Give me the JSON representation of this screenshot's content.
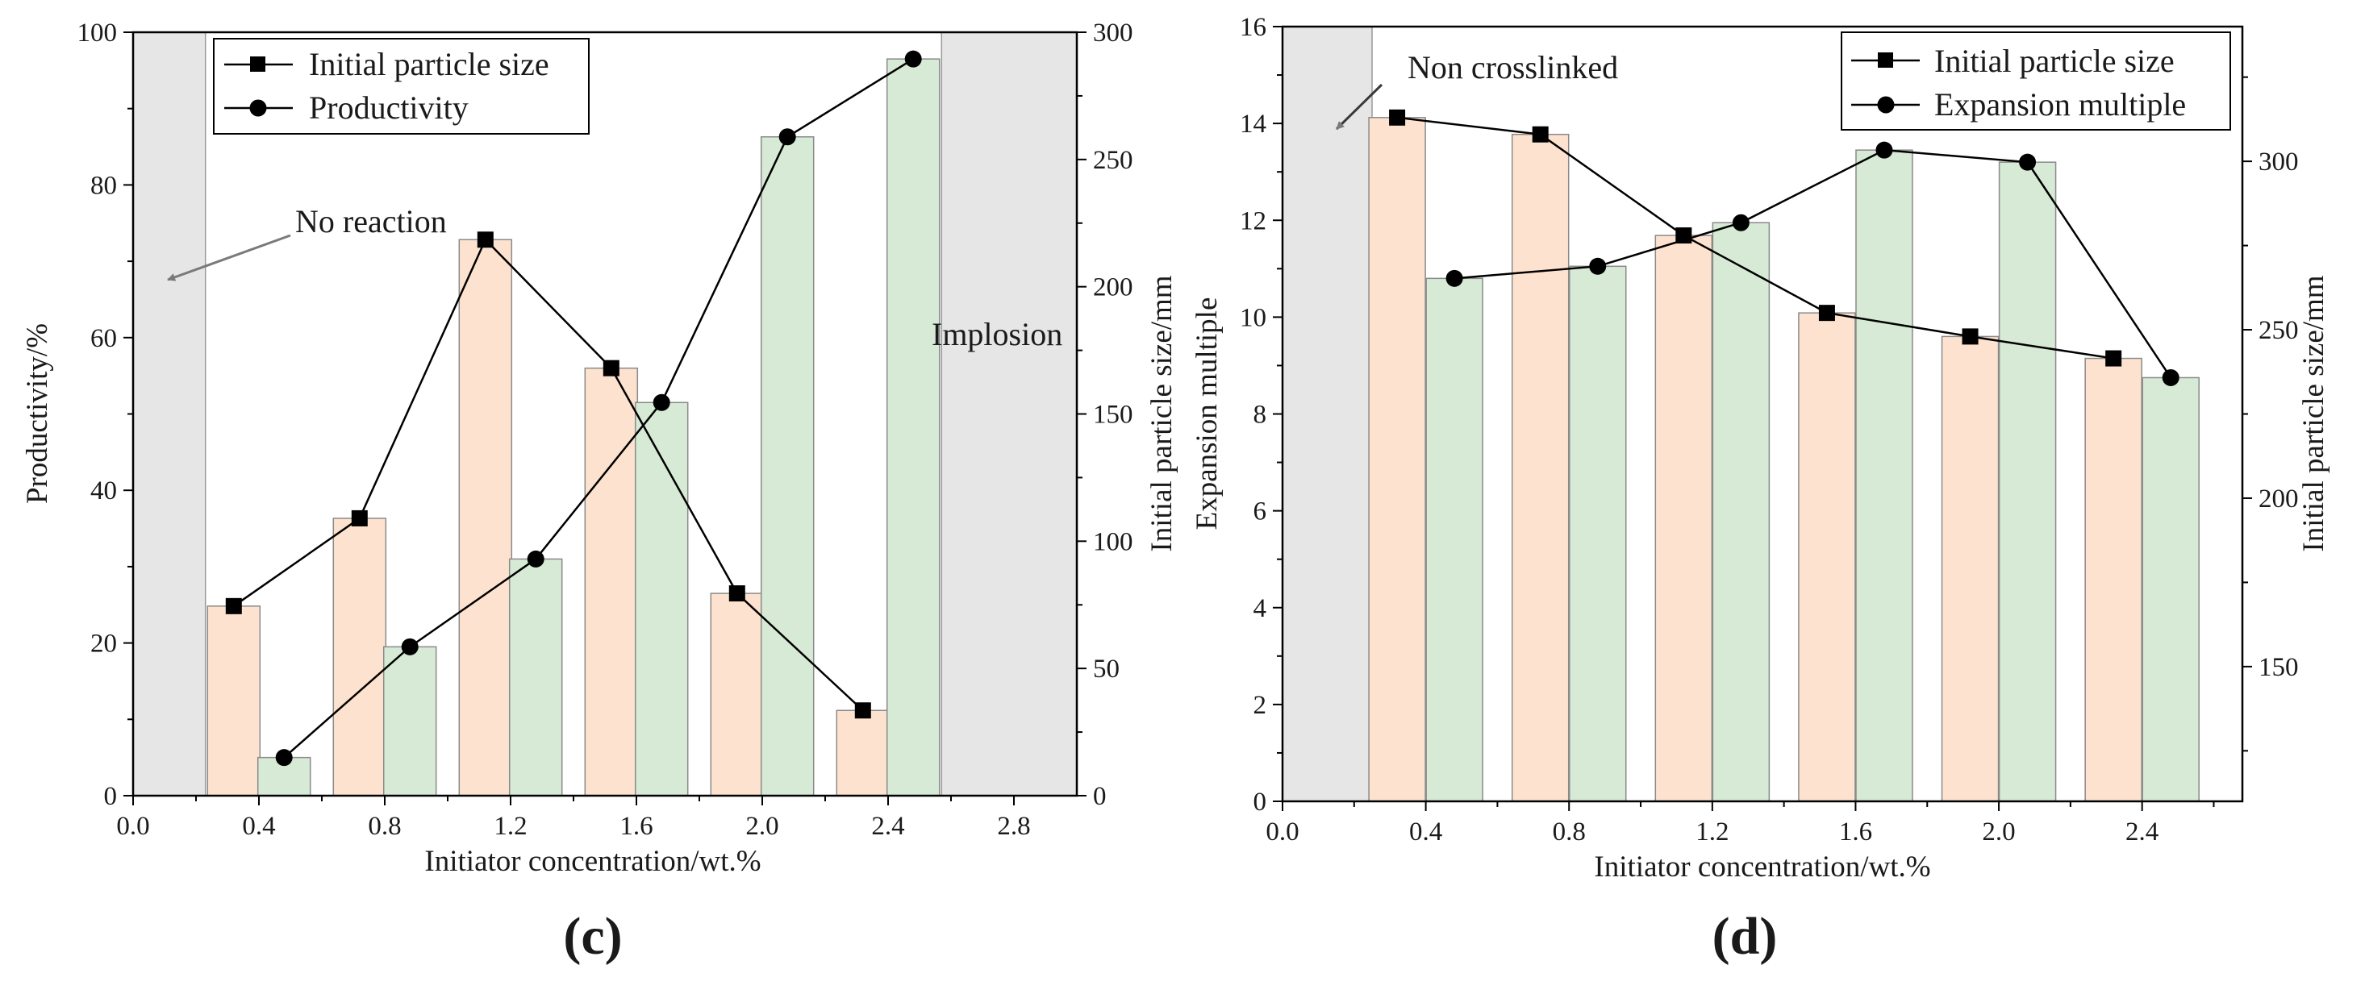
{
  "chart_data": [
    {
      "panel_label": "(c)",
      "type": "bar+line",
      "xlabel": "Initiator concentration/wt.%",
      "ylabel_left": "Productivity/%",
      "ylabel_right": "Initial particle size/mm",
      "xlim": [
        0.0,
        3.0
      ],
      "xticks": [
        "0.0",
        "0.4",
        "0.8",
        "1.2",
        "1.6",
        "2.0",
        "2.4",
        "2.8"
      ],
      "ylim_left": [
        0,
        100
      ],
      "yticks_left": [
        "0",
        "20",
        "40",
        "60",
        "80",
        "100"
      ],
      "ylim_right": [
        0,
        300
      ],
      "yticks_right": [
        "0",
        "50",
        "100",
        "150",
        "200",
        "250",
        "300"
      ],
      "shaded_regions": [
        [
          0.0,
          0.23
        ],
        [
          2.57,
          3.0
        ]
      ],
      "annotations": [
        {
          "text": "No reaction",
          "x": 0.0,
          "y": 0.0
        },
        {
          "text": "Implosion",
          "x": 0.0,
          "y": 0.0
        }
      ],
      "legend": [
        "Initial particle size",
        "Productivity"
      ],
      "series": [
        {
          "name": "Initial particle size",
          "axis": "right",
          "bar_color": "#fde3cf",
          "x": [
            0.32,
            0.72,
            1.12,
            1.52,
            1.92,
            2.32
          ],
          "values": [
            74.5,
            109,
            218.5,
            168,
            79.5,
            33.5
          ]
        },
        {
          "name": "Productivity",
          "axis": "left",
          "bar_color": "#d6ead5",
          "x": [
            0.48,
            0.88,
            1.28,
            1.68,
            2.08,
            2.48
          ],
          "values": [
            5,
            19.5,
            31,
            51.5,
            86.3,
            96.5
          ]
        }
      ]
    },
    {
      "panel_label": "(d)",
      "type": "bar+line",
      "xlabel": "Initiator concentration/wt.%",
      "ylabel_left": "Expansion multiple",
      "ylabel_right": "Initial particle size/mm",
      "xlim": [
        0.0,
        2.68
      ],
      "xticks": [
        "0.0",
        "0.4",
        "0.8",
        "1.2",
        "1.6",
        "2.0",
        "2.4"
      ],
      "ylim_left": [
        0,
        16
      ],
      "yticks_left": [
        "0",
        "2",
        "4",
        "6",
        "8",
        "10",
        "12",
        "14",
        "16"
      ],
      "ylim_right": [
        110,
        340
      ],
      "yticks_right": [
        "150",
        "200",
        "250",
        "300"
      ],
      "shaded_regions": [
        [
          0.0,
          0.25
        ]
      ],
      "annotations": [
        {
          "text": "Non crosslinked",
          "x": 0.0,
          "y": 0.0
        }
      ],
      "legend": [
        "Initial particle size",
        "Expansion multiple"
      ],
      "series": [
        {
          "name": "Initial particle size",
          "axis": "right",
          "bar_color": "#fde3cf",
          "x": [
            0.32,
            0.72,
            1.12,
            1.52,
            1.92,
            2.32
          ],
          "values": [
            313,
            308,
            278,
            255,
            248,
            241.5
          ]
        },
        {
          "name": "Expansion multiple",
          "axis": "left",
          "bar_color": "#d6ead5",
          "x": [
            0.48,
            0.88,
            1.28,
            1.68,
            2.08,
            2.48
          ],
          "values": [
            10.8,
            11.05,
            11.95,
            13.45,
            13.2,
            8.75
          ]
        }
      ]
    }
  ]
}
